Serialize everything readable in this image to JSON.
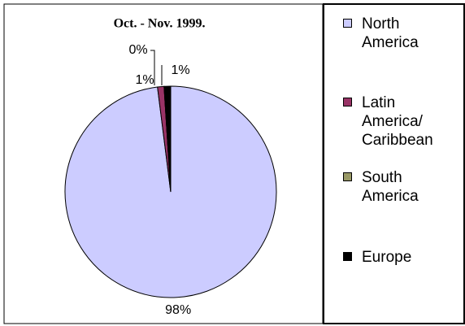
{
  "chart_data": {
    "type": "pie",
    "title": "Oct. - Nov. 1999.",
    "categories": [
      "North America",
      "Latin America/ Caribbean",
      "South America",
      "Europe"
    ],
    "values": [
      98,
      1,
      0,
      1
    ],
    "value_labels": [
      "98%",
      "1%",
      "0%",
      "1%"
    ],
    "colors": [
      "#ccccff",
      "#993366",
      "#999966",
      "#000000"
    ],
    "legend": "right"
  }
}
